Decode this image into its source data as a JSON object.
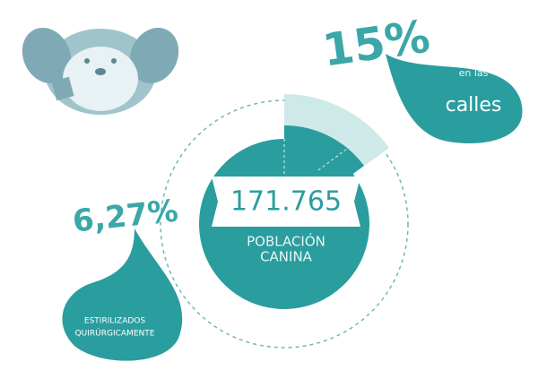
{
  "population": {
    "value": "171.765",
    "label_line1": "POBLACIÓN",
    "label_line2": "CANINA"
  },
  "street": {
    "percent": "15%",
    "label_line1": "en las",
    "label_line2": "calles"
  },
  "sterilized": {
    "percent": "6,27%",
    "label_line1": "ESTIRILIZADOS",
    "label_line2": "QUIRÚRGICAMENTE"
  }
}
